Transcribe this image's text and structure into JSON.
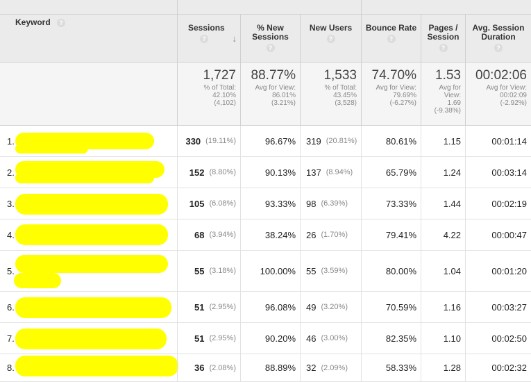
{
  "header": {
    "keyword": "Keyword",
    "sessions": "Sessions",
    "new_sessions": "% New Sessions",
    "new_users": "New Users",
    "bounce_rate": "Bounce Rate",
    "pages_session": "Pages / Session",
    "avg_duration": "Avg. Session Duration",
    "help_glyph": "?",
    "sort_glyph": "↓"
  },
  "totals": {
    "sessions": {
      "value": "1,727",
      "sub1": "% of Total:",
      "sub2": "42.10%",
      "sub3": "(4,102)"
    },
    "new_sessions": {
      "value": "88.77%",
      "sub1": "Avg for View:",
      "sub2": "86.01%",
      "sub3": "(3.21%)"
    },
    "new_users": {
      "value": "1,533",
      "sub1": "% of Total:",
      "sub2": "43.45%",
      "sub3": "(3,528)"
    },
    "bounce_rate": {
      "value": "74.70%",
      "sub1": "Avg for View:",
      "sub2": "79.69%",
      "sub3": "(-6.27%)"
    },
    "pages_session": {
      "value": "1.53",
      "sub1": "Avg for",
      "sub2": "View:",
      "sub3": "1.69",
      "sub4": "(-9.38%)"
    },
    "avg_duration": {
      "value": "00:02:06",
      "sub1": "Avg for View:",
      "sub2": "00:02:09",
      "sub3": "(-2.92%)"
    }
  },
  "rows": [
    {
      "index": "1.",
      "keyword_tail": "",
      "sessions": "330",
      "sessions_pct": "(19.11%)",
      "new_sessions": "96.67%",
      "new_users": "319",
      "new_users_pct": "(20.81%)",
      "bounce_rate": "80.61%",
      "pages_session": "1.15",
      "avg_duration": "00:01:14"
    },
    {
      "index": "2.",
      "keyword_tail": "",
      "sessions": "152",
      "sessions_pct": "(8.80%)",
      "new_sessions": "90.13%",
      "new_users": "137",
      "new_users_pct": "(8.94%)",
      "bounce_rate": "65.79%",
      "pages_session": "1.24",
      "avg_duration": "00:03:14"
    },
    {
      "index": "3.",
      "keyword_tail": "",
      "sessions": "105",
      "sessions_pct": "(6.08%)",
      "new_sessions": "93.33%",
      "new_users": "98",
      "new_users_pct": "(6.39%)",
      "bounce_rate": "73.33%",
      "pages_session": "1.44",
      "avg_duration": "00:02:19"
    },
    {
      "index": "4.",
      "keyword_tail": "",
      "sessions": "68",
      "sessions_pct": "(3.94%)",
      "new_sessions": "38.24%",
      "new_users": "26",
      "new_users_pct": "(1.70%)",
      "bounce_rate": "79.41%",
      "pages_session": "4.22",
      "avg_duration": "00:00:47"
    },
    {
      "index": "5.",
      "keyword_tail": "m",
      "sessions": "55",
      "sessions_pct": "(3.18%)",
      "new_sessions": "100.00%",
      "new_users": "55",
      "new_users_pct": "(3.59%)",
      "bounce_rate": "80.00%",
      "pages_session": "1.04",
      "avg_duration": "00:01:20"
    },
    {
      "index": "6.",
      "keyword_tail": "",
      "sessions": "51",
      "sessions_pct": "(2.95%)",
      "new_sessions": "96.08%",
      "new_users": "49",
      "new_users_pct": "(3.20%)",
      "bounce_rate": "70.59%",
      "pages_session": "1.16",
      "avg_duration": "00:03:27"
    },
    {
      "index": "7.",
      "keyword_tail": "",
      "sessions": "51",
      "sessions_pct": "(2.95%)",
      "new_sessions": "90.20%",
      "new_users": "46",
      "new_users_pct": "(3.00%)",
      "bounce_rate": "82.35%",
      "pages_session": "1.10",
      "avg_duration": "00:02:50"
    },
    {
      "index": "8.",
      "keyword_tail": "",
      "sessions": "36",
      "sessions_pct": "(2.08%)",
      "new_sessions": "88.89%",
      "new_users": "32",
      "new_users_pct": "(2.09%)",
      "bounce_rate": "58.33%",
      "pages_session": "1.28",
      "avg_duration": "00:02:32"
    }
  ],
  "colors": {
    "redaction": "#ffff00",
    "link": "#1a5aa6",
    "header_bg": "#ebebeb",
    "totals_bg": "#f5f5f5"
  }
}
